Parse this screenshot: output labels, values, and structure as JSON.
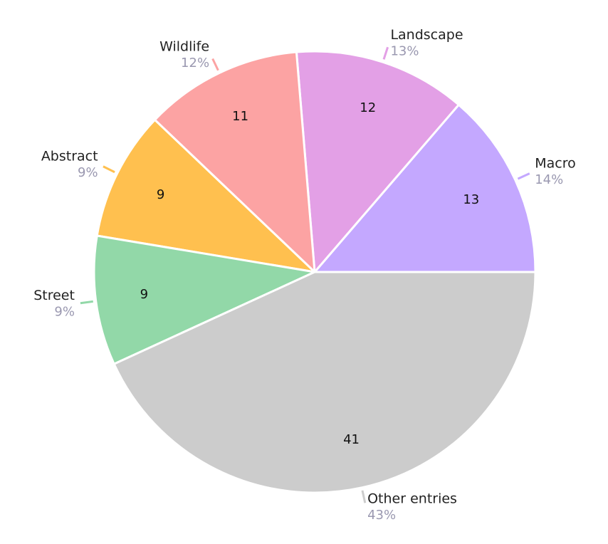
{
  "chart_data": {
    "type": "pie",
    "categories": [
      "Macro",
      "Landscape",
      "Wildlife",
      "Abstract",
      "Street",
      "Other entries"
    ],
    "values": [
      13,
      12,
      11,
      9,
      9,
      41
    ],
    "percent_labels": [
      "14%",
      "13%",
      "12%",
      "9%",
      "9%",
      "43%"
    ],
    "colors": [
      "#c4a8ff",
      "#e3a0e6",
      "#fca3a3",
      "#ffc04f",
      "#92d8a8",
      "#cccccc"
    ]
  }
}
